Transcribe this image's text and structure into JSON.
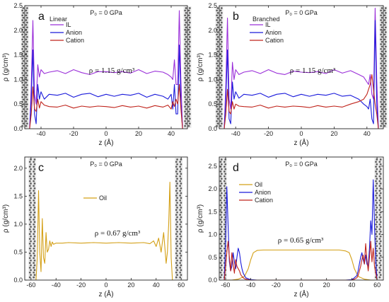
{
  "chart_data": [
    {
      "panel_label": "a",
      "type": "line",
      "header": "P₀ = 0 GPa",
      "legend_title": "Linear",
      "annotation": "ρ = 1.15 g/cm³",
      "xlabel": "z (Å)",
      "ylabel": "ρ (g/cm³)",
      "xlim": [
        -50,
        50
      ],
      "ylim": [
        0,
        2.5
      ],
      "xticks": [
        -40,
        -20,
        0,
        20,
        40
      ],
      "yticks": [
        0.0,
        0.5,
        1.0,
        1.5,
        2.0,
        2.5
      ],
      "walls_x": [
        -50,
        50
      ],
      "series": [
        {
          "name": "IL",
          "color": "#9b30d9",
          "x": [
            -47,
            -46,
            -45,
            -44,
            -43,
            -42,
            -41,
            -40,
            -38,
            -35,
            -30,
            -25,
            -20,
            -15,
            -10,
            -5,
            0,
            5,
            10,
            15,
            20,
            25,
            30,
            35,
            38,
            40,
            41,
            42,
            43,
            44,
            45,
            46,
            47
          ],
          "y": [
            0,
            0.9,
            2.2,
            0.7,
            0.5,
            1.3,
            1.05,
            1.2,
            1.12,
            1.15,
            1.18,
            1.12,
            1.2,
            1.14,
            1.1,
            1.16,
            1.16,
            1.14,
            1.16,
            1.13,
            1.2,
            1.12,
            1.17,
            1.15,
            1.1,
            1.05,
            1.0,
            1.4,
            0.9,
            0.9,
            2.4,
            1.0,
            0
          ]
        },
        {
          "name": "Anion",
          "color": "#1a1adb",
          "x": [
            -47,
            -46,
            -45,
            -44,
            -43,
            -42,
            -41,
            -40,
            -38,
            -35,
            -30,
            -25,
            -20,
            -15,
            -10,
            -5,
            0,
            5,
            10,
            15,
            20,
            25,
            30,
            35,
            38,
            40,
            41,
            42,
            43,
            44,
            45,
            46,
            47
          ],
          "y": [
            0,
            0.6,
            1.6,
            0.3,
            0.1,
            0.9,
            0.6,
            0.75,
            0.6,
            0.7,
            0.68,
            0.72,
            0.64,
            0.7,
            0.72,
            0.65,
            0.7,
            0.66,
            0.7,
            0.68,
            0.72,
            0.64,
            0.7,
            0.66,
            0.6,
            0.7,
            0.4,
            0.9,
            0.3,
            0.3,
            1.7,
            0.5,
            0
          ]
        },
        {
          "name": "Cation",
          "color": "#c0241c",
          "x": [
            -47,
            -46,
            -45,
            -44,
            -43,
            -42,
            -41,
            -40,
            -38,
            -35,
            -30,
            -25,
            -20,
            -15,
            -10,
            -5,
            0,
            5,
            10,
            15,
            20,
            25,
            30,
            35,
            38,
            40,
            41,
            42,
            43,
            44,
            45,
            46,
            47
          ],
          "y": [
            0,
            0.3,
            0.85,
            0.4,
            0.35,
            0.6,
            0.42,
            0.55,
            0.48,
            0.45,
            0.44,
            0.48,
            0.42,
            0.46,
            0.44,
            0.46,
            0.45,
            0.43,
            0.47,
            0.44,
            0.46,
            0.42,
            0.47,
            0.44,
            0.48,
            0.4,
            0.55,
            0.45,
            0.6,
            0.5,
            0.9,
            0.4,
            0
          ]
        }
      ]
    },
    {
      "panel_label": "b",
      "type": "line",
      "header": "P₀ = 0 GPa",
      "legend_title": "Branched",
      "annotation": "ρ = 1.15 g/cm³",
      "xlabel": "z (Å)",
      "ylabel": "ρ (g/cm³)",
      "xlim": [
        -50,
        50
      ],
      "ylim": [
        0,
        2.5
      ],
      "xticks": [
        -40,
        -20,
        0,
        20,
        40
      ],
      "yticks": [
        0.0,
        0.5,
        1.0,
        1.5,
        2.0,
        2.5
      ],
      "walls_x": [
        -50,
        50
      ],
      "series": [
        {
          "name": "IL",
          "color": "#9b30d9",
          "x": [
            -47,
            -46,
            -45,
            -44,
            -43,
            -42,
            -41,
            -40,
            -38,
            -35,
            -30,
            -25,
            -20,
            -15,
            -10,
            -5,
            0,
            5,
            10,
            15,
            20,
            25,
            30,
            35,
            38,
            40,
            41,
            42,
            43,
            44,
            45,
            46,
            47
          ],
          "y": [
            0,
            0.9,
            2.25,
            0.6,
            0.4,
            1.35,
            1.0,
            1.2,
            1.1,
            1.15,
            1.18,
            1.12,
            1.2,
            1.13,
            1.1,
            1.17,
            1.15,
            1.14,
            1.16,
            1.12,
            1.2,
            1.13,
            1.18,
            1.1,
            1.05,
            0.95,
            0.9,
            1.1,
            0.7,
            0.6,
            2.45,
            1.0,
            0
          ]
        },
        {
          "name": "Anion",
          "color": "#1a1adb",
          "x": [
            -47,
            -46,
            -45,
            -44,
            -43,
            -42,
            -41,
            -40,
            -38,
            -35,
            -30,
            -25,
            -20,
            -15,
            -10,
            -5,
            0,
            5,
            10,
            15,
            20,
            25,
            30,
            35,
            38,
            40,
            41,
            42,
            43,
            44,
            45,
            46,
            47
          ],
          "y": [
            0,
            0.6,
            1.6,
            0.2,
            0.1,
            0.95,
            0.6,
            0.75,
            0.62,
            0.7,
            0.68,
            0.72,
            0.64,
            0.7,
            0.72,
            0.65,
            0.7,
            0.66,
            0.7,
            0.68,
            0.72,
            0.66,
            0.68,
            0.6,
            0.5,
            0.45,
            0.4,
            0.6,
            0.2,
            0.1,
            2.2,
            0.5,
            0
          ]
        },
        {
          "name": "Cation",
          "color": "#c0241c",
          "x": [
            -47,
            -46,
            -45,
            -44,
            -43,
            -42,
            -41,
            -40,
            -38,
            -35,
            -30,
            -25,
            -20,
            -15,
            -10,
            -5,
            0,
            5,
            10,
            15,
            20,
            25,
            30,
            35,
            38,
            40,
            41,
            42,
            43,
            44,
            45,
            46,
            47
          ],
          "y": [
            0,
            0.3,
            0.8,
            0.35,
            0.3,
            0.55,
            0.4,
            0.5,
            0.46,
            0.45,
            0.44,
            0.48,
            0.42,
            0.46,
            0.44,
            0.46,
            0.45,
            0.43,
            0.47,
            0.44,
            0.46,
            0.44,
            0.5,
            0.55,
            0.6,
            0.7,
            0.8,
            0.9,
            1.1,
            0.8,
            0.5,
            0.3,
            0
          ]
        }
      ]
    },
    {
      "panel_label": "c",
      "type": "line",
      "header": "P₀ = 0 GPa",
      "legend_title": "",
      "annotation": "ρ = 0.67 g/cm³",
      "xlabel": "z (Å)",
      "ylabel": "ρ (g/cm³)",
      "xlim": [
        -65,
        65
      ],
      "ylim": [
        0,
        2.2
      ],
      "xticks": [
        -60,
        -40,
        -20,
        0,
        20,
        40,
        60
      ],
      "yticks": [
        0.0,
        0.5,
        1.0,
        1.5,
        2.0
      ],
      "walls_x": [
        -59,
        58
      ],
      "series": [
        {
          "name": "Oil",
          "color": "#d4a017",
          "x": [
            -56,
            -55,
            -54,
            -53,
            -52,
            -51,
            -50,
            -49,
            -48,
            -47,
            -46,
            -45,
            -44,
            -43,
            -42,
            -40,
            -35,
            -30,
            -20,
            -10,
            0,
            10,
            20,
            30,
            35,
            38,
            40,
            42,
            44,
            46,
            48,
            49,
            50,
            51,
            52,
            53
          ],
          "y": [
            0,
            0.4,
            1.6,
            0.5,
            0.15,
            1.1,
            0.4,
            0.3,
            0.85,
            0.5,
            0.55,
            0.7,
            0.6,
            0.68,
            0.64,
            0.66,
            0.66,
            0.67,
            0.66,
            0.67,
            0.66,
            0.67,
            0.66,
            0.67,
            0.65,
            0.7,
            0.6,
            0.75,
            0.5,
            0.85,
            0.3,
            0.5,
            1.0,
            1.75,
            0.4,
            0
          ]
        }
      ]
    },
    {
      "panel_label": "d",
      "type": "line",
      "header": "P₀ = 0 GPa",
      "legend_title": "",
      "annotation": "ρ = 0.65 g/cm³",
      "xlabel": "z (Å)",
      "ylabel": "ρ (g/cm³)",
      "xlim": [
        -65,
        65
      ],
      "ylim": [
        0,
        2.7
      ],
      "xticks": [
        -60,
        -40,
        -20,
        0,
        20,
        40,
        60
      ],
      "yticks": [
        0.0,
        0.5,
        1.0,
        1.5,
        2.0,
        2.5
      ],
      "walls_x": [
        -62,
        61
      ],
      "series": [
        {
          "name": "Oil",
          "color": "#d4a017",
          "x": [
            -60,
            -55,
            -50,
            -45,
            -42,
            -40,
            -38,
            -35,
            -30,
            0,
            30,
            35,
            38,
            40,
            42,
            45,
            50,
            55,
            58
          ],
          "y": [
            0,
            0,
            0.02,
            0.08,
            0.25,
            0.45,
            0.6,
            0.65,
            0.66,
            0.66,
            0.66,
            0.64,
            0.6,
            0.45,
            0.25,
            0.08,
            0.02,
            0,
            0
          ]
        },
        {
          "name": "Anion",
          "color": "#1a1adb",
          "x": [
            -61,
            -60,
            -59,
            -58,
            -57,
            -56,
            -55,
            -54,
            -53,
            -52,
            -51,
            -50,
            -49,
            -48,
            -47,
            -46,
            -45,
            -44,
            -42,
            -40,
            -35,
            35,
            40,
            42,
            44,
            45,
            46,
            47,
            48,
            49,
            50,
            51,
            52,
            53,
            54,
            55,
            56,
            57,
            58,
            59,
            60
          ],
          "y": [
            0,
            0.8,
            2.05,
            1.2,
            0.4,
            0.2,
            0.3,
            0.6,
            0.4,
            0.25,
            0.5,
            0.7,
            0.6,
            0.4,
            0.25,
            0.15,
            0.1,
            0.05,
            0.03,
            0.01,
            0,
            0,
            0.01,
            0.05,
            0.1,
            0.2,
            0.35,
            0.5,
            0.6,
            0.45,
            0.35,
            0.55,
            0.35,
            0.3,
            0.7,
            1.3,
            1.0,
            2.2,
            1.2,
            0.4,
            0
          ]
        },
        {
          "name": "Cation",
          "color": "#c0241c",
          "x": [
            -61,
            -60,
            -59,
            -58,
            -57,
            -56,
            -55,
            -54,
            -53,
            -52,
            -51,
            -50,
            -49,
            -48,
            -47,
            -46,
            -45,
            -44,
            -42,
            -40,
            -35,
            35,
            40,
            42,
            44,
            45,
            46,
            47,
            48,
            49,
            50,
            51,
            52,
            53,
            54,
            55,
            56,
            57,
            58,
            59,
            60
          ],
          "y": [
            0,
            0.3,
            0.6,
            0.85,
            0.5,
            0.2,
            0.6,
            0.35,
            0.15,
            0.45,
            0.3,
            0.25,
            0.2,
            0.12,
            0.08,
            0.05,
            0.03,
            0.02,
            0.01,
            0,
            0,
            0,
            0,
            0.02,
            0.05,
            0.1,
            0.2,
            0.3,
            0.45,
            0.55,
            0.35,
            0.8,
            0.45,
            0.2,
            0.5,
            0.85,
            0.4,
            0.7,
            0.3,
            0.15,
            0
          ]
        }
      ]
    }
  ]
}
